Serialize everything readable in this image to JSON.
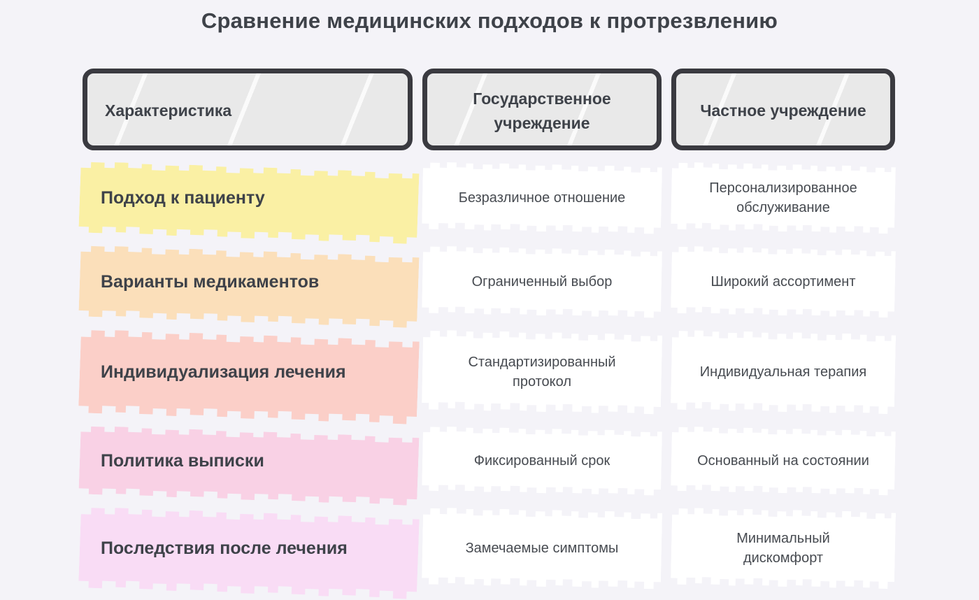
{
  "title": "Сравнение медицинских подходов к протрезвлению",
  "table": {
    "headers": [
      {
        "label": "Характеристика"
      },
      {
        "label": "Государственное учреждение"
      },
      {
        "label": "Частное учреждение"
      }
    ],
    "rows": [
      {
        "feature": "Подход к пациенту",
        "state": "Безразличное отношение",
        "private": "Персонализированное обслуживание",
        "highlight_color": "#faf0a4"
      },
      {
        "feature": "Варианты медикаментов",
        "state": "Ограниченный выбор",
        "private": "Широкий ассортимент",
        "highlight_color": "#fbdfba"
      },
      {
        "feature": "Индивидуализация лечения",
        "state": "Стандартизированный протокол",
        "private": "Индивидуальная терапия",
        "highlight_color": "#fbcfc8"
      },
      {
        "feature": "Политика выписки",
        "state": "Фиксированный срок",
        "private": "Основанный на состоянии",
        "highlight_color": "#f9d1e5"
      },
      {
        "feature": "Последствия после лечения",
        "state": "Замечаемые симптомы",
        "private": "Минимальный дискомфорт",
        "highlight_color": "#f9dcf5"
      }
    ]
  },
  "colors": {
    "page_background": "#f4f3f8",
    "header_fill": "#e9e9e9",
    "header_border": "#3a3a40",
    "title_text": "#3e4249",
    "value_text": "#474b51",
    "value_cell_background": "#ffffff"
  },
  "chart_data": {
    "type": "table",
    "title": "Сравнение медицинских подходов к протрезвлению",
    "columns": [
      "Характеристика",
      "Государственное учреждение",
      "Частное учреждение"
    ],
    "rows": [
      [
        "Подход к пациенту",
        "Безразличное отношение",
        "Персонализированное обслуживание"
      ],
      [
        "Варианты медикаментов",
        "Ограниченный выбор",
        "Широкий ассортимент"
      ],
      [
        "Индивидуализация лечения",
        "Стандартизированный протокол",
        "Индивидуальная терапия"
      ],
      [
        "Политика выписки",
        "Фиксированный срок",
        "Основанный на состоянии"
      ],
      [
        "Последствия после лечения",
        "Замечаемые симптомы",
        "Минимальный дискомфорт"
      ]
    ]
  }
}
